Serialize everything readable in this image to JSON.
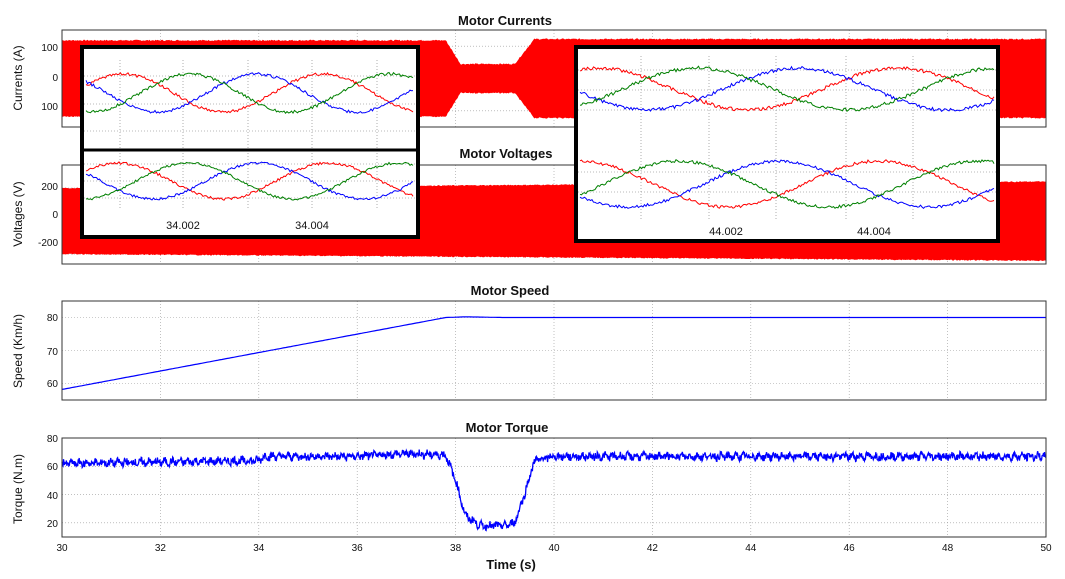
{
  "chart_data": [
    {
      "type": "line",
      "title": "Motor Currents",
      "ylabel": "Currents (A)",
      "ylim": [
        -150,
        150
      ],
      "yticks": [
        "100",
        "0",
        "100"
      ],
      "xlim": [
        30,
        50
      ],
      "grid": true,
      "series": [
        {
          "envelope_amplitude": [
            {
              "t": 30.0,
              "amp": 118
            },
            {
              "t": 37.8,
              "amp": 118
            },
            {
              "t": 38.1,
              "amp": 45
            },
            {
              "t": 39.2,
              "amp": 45
            },
            {
              "t": 39.6,
              "amp": 122
            },
            {
              "t": 50.0,
              "amp": 122
            }
          ]
        }
      ],
      "color": "#ff0000"
    },
    {
      "type": "line",
      "title": "Motor Voltages",
      "ylabel": "Voltages (V)",
      "ylim": [
        -260,
        340
      ],
      "yticks": [
        "200",
        "0",
        "-200"
      ],
      "xlim": [
        30,
        50
      ],
      "grid": true,
      "series": [
        {
          "envelope_amplitude": [
            {
              "t": 30.0,
              "amp": 200
            },
            {
              "t": 50.0,
              "amp": 240
            }
          ]
        }
      ],
      "color": "#ff0000"
    },
    {
      "type": "line",
      "title": "Motor Speed",
      "ylabel": "Speed (Km/h)",
      "ylim": [
        55,
        85
      ],
      "yticks": [
        "60",
        "70",
        "80"
      ],
      "xlim": [
        30,
        50
      ],
      "grid": true,
      "series": [
        {
          "color": "#0000ff",
          "points": [
            [
              30,
              58.2
            ],
            [
              37.8,
              80.0
            ],
            [
              38.2,
              80.2
            ],
            [
              39.0,
              80.0
            ],
            [
              50,
              80.0
            ]
          ]
        }
      ]
    },
    {
      "type": "line",
      "title": "Motor Torque",
      "ylabel": "Torque (N.m)",
      "xlabel": "Time (s)",
      "ylim": [
        10,
        80
      ],
      "yticks": [
        "20",
        "40",
        "60",
        "80"
      ],
      "xlim": [
        30,
        50
      ],
      "xticks": [
        "30",
        "32",
        "34",
        "36",
        "38",
        "40",
        "42",
        "44",
        "46",
        "48",
        "50"
      ],
      "grid": true,
      "series": [
        {
          "color": "#0000ff",
          "points": [
            [
              30,
              62
            ],
            [
              32,
              63
            ],
            [
              34,
              64
            ],
            [
              34.1,
              67
            ],
            [
              36,
              67
            ],
            [
              37,
              69
            ],
            [
              37.8,
              68
            ],
            [
              38.0,
              50
            ],
            [
              38.2,
              25
            ],
            [
              38.5,
              18
            ],
            [
              39.0,
              18
            ],
            [
              39.2,
              20
            ],
            [
              39.4,
              40
            ],
            [
              39.6,
              64
            ],
            [
              40,
              67
            ],
            [
              50,
              67
            ]
          ]
        }
      ]
    }
  ],
  "insets": [
    {
      "ticks": [
        "34.002",
        "34.004"
      ],
      "phase_colors": [
        "#ff0000",
        "#0000ff",
        "#008000"
      ]
    },
    {
      "ticks": [
        "44.002",
        "44.004"
      ],
      "phase_colors": [
        "#ff0000",
        "#0000ff",
        "#008000"
      ]
    }
  ]
}
